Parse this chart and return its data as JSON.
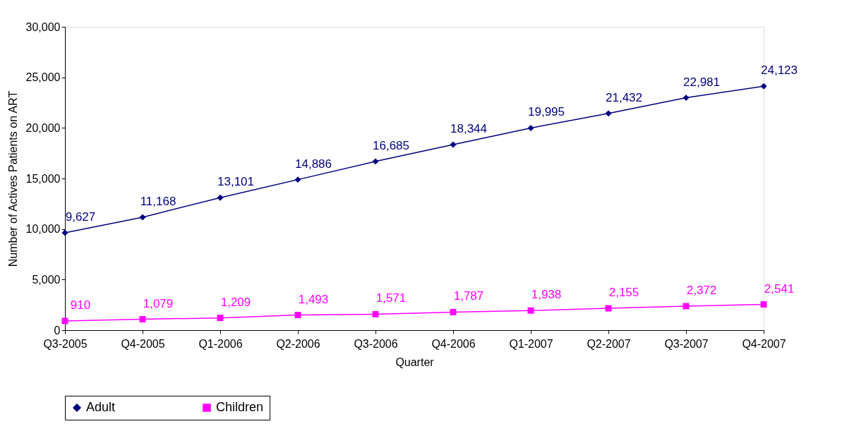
{
  "chart_data": {
    "type": "line",
    "xlabel": "Quarter",
    "ylabel": "Number of Actives Patients on ART",
    "categories": [
      "Q3-2005",
      "Q4-2005",
      "Q1-2006",
      "Q2-2006",
      "Q3-2006",
      "Q4-2006",
      "Q1-2007",
      "Q2-2007",
      "Q3-2007",
      "Q4-2007"
    ],
    "series": [
      {
        "name": "Adult",
        "color": "#000080",
        "marker": "diamond",
        "values": [
          9627,
          11168,
          13101,
          14886,
          16685,
          18344,
          19995,
          21432,
          22981,
          24123
        ],
        "value_labels": [
          "9,627",
          "11,168",
          "13,101",
          "14,886",
          "16,685",
          "18,344",
          "19,995",
          "21,432",
          "22,981",
          "24,123"
        ]
      },
      {
        "name": "Children",
        "color": "#ff00ff",
        "marker": "square",
        "values": [
          910,
          1079,
          1209,
          1493,
          1571,
          1787,
          1938,
          2155,
          2372,
          2541
        ],
        "value_labels": [
          "910",
          "1,079",
          "1,209",
          "1,493",
          "1,571",
          "1,787",
          "1,938",
          "2,155",
          "2,372",
          "2,541"
        ]
      }
    ],
    "ylim": [
      0,
      30000
    ],
    "yticks": [
      0,
      {
        "value": 5000,
        "label": "5,000"
      },
      {
        "value": 10000,
        "label": "10,000"
      },
      {
        "value": 15000,
        "label": "15,000"
      },
      {
        "value": 20000,
        "label": "20,000"
      },
      {
        "value": 25000,
        "label": "25,000"
      },
      {
        "value": 30000,
        "label": "30,000"
      }
    ],
    "grid": false,
    "legend": "bottom",
    "line_style": "solid"
  }
}
